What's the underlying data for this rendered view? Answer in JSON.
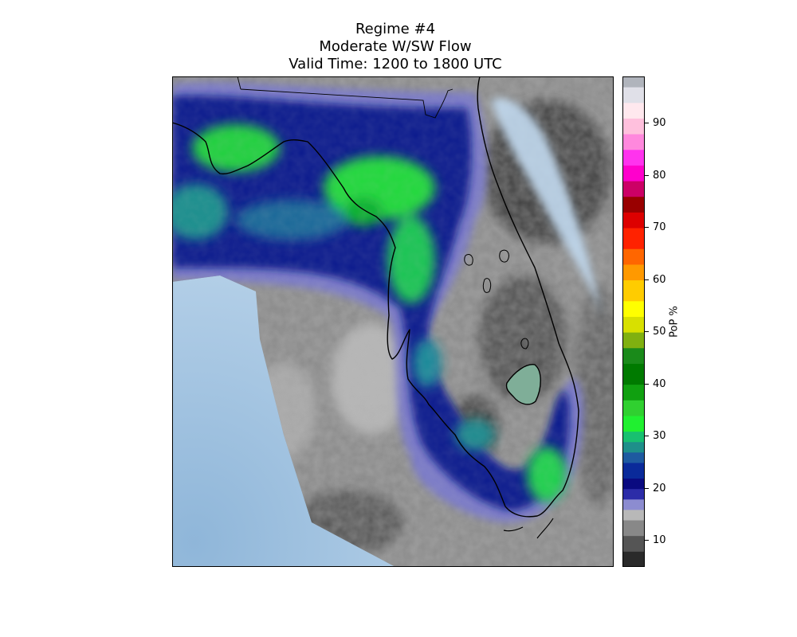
{
  "title": {
    "line1": "Regime #4",
    "line2": "Moderate W/SW Flow",
    "line3": "Valid Time: 1200 to 1800 UTC"
  },
  "colorbar": {
    "label": "PoP %",
    "min": 5,
    "max": 99,
    "ticks": [
      10,
      20,
      30,
      40,
      50,
      60,
      70,
      80,
      90
    ],
    "colormap": [
      [
        5,
        "#2a2a2a"
      ],
      [
        8,
        "#555555"
      ],
      [
        11,
        "#888888"
      ],
      [
        14,
        "#b8b8b8"
      ],
      [
        16,
        "#8c8cd0"
      ],
      [
        18,
        "#2c2ca8"
      ],
      [
        20,
        "#0a0a80"
      ],
      [
        22,
        "#0a2a9a"
      ],
      [
        25,
        "#1e5aa0"
      ],
      [
        27,
        "#1e8f8a"
      ],
      [
        29,
        "#18c070"
      ],
      [
        31,
        "#20f030"
      ],
      [
        34,
        "#30d030"
      ],
      [
        37,
        "#10a010"
      ],
      [
        40,
        "#007a00"
      ],
      [
        44,
        "#1a8a1a"
      ],
      [
        47,
        "#80b010"
      ],
      [
        50,
        "#d8e000"
      ],
      [
        53,
        "#ffff00"
      ],
      [
        56,
        "#ffcc00"
      ],
      [
        60,
        "#ff9900"
      ],
      [
        63,
        "#ff6600"
      ],
      [
        66,
        "#ff2200"
      ],
      [
        70,
        "#dd0000"
      ],
      [
        73,
        "#990000"
      ],
      [
        76,
        "#cc0066"
      ],
      [
        79,
        "#ff00cc"
      ],
      [
        82,
        "#ff33ee"
      ],
      [
        85,
        "#ff88dd"
      ],
      [
        88,
        "#ffc0dd"
      ],
      [
        91,
        "#ffe8ee"
      ],
      [
        94,
        "#e0e0e8"
      ],
      [
        97,
        "#b0b4bc"
      ],
      [
        99,
        "#808890"
      ]
    ]
  },
  "colors": {
    "water": "#b9d3ea",
    "water_deep": "#9ec0de",
    "border": "#000000"
  }
}
